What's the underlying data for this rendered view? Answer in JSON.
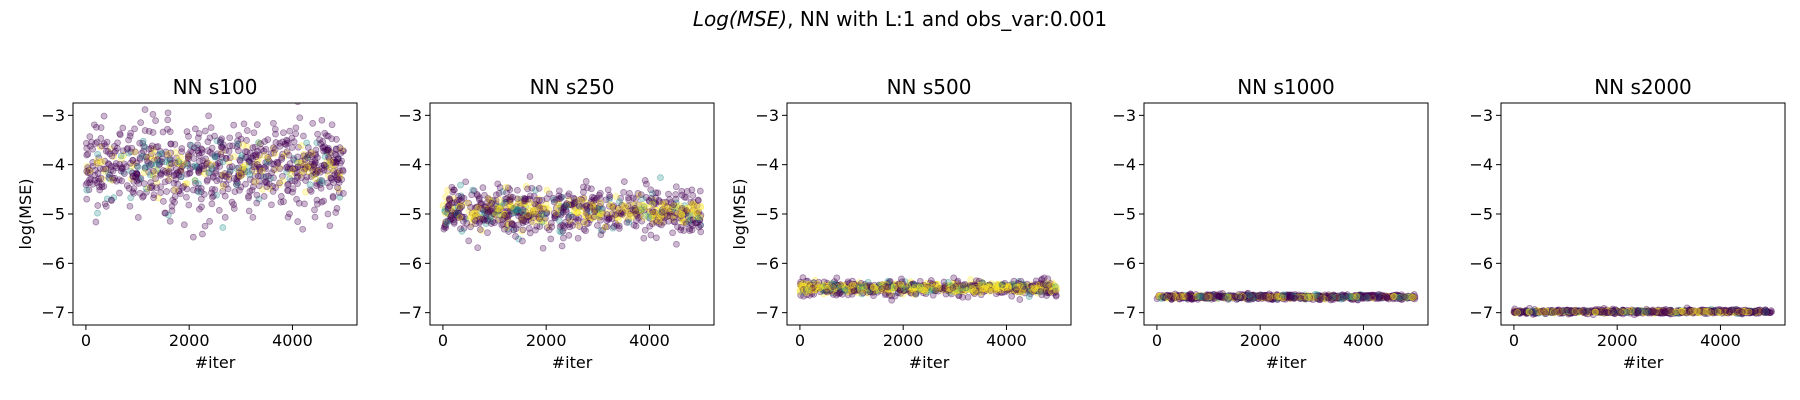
{
  "figure": {
    "suptitle_math": "Log(MSE)",
    "suptitle_rest": ", NN with L:1 and obs_var:0.001"
  },
  "colors": {
    "low": "#440154",
    "mid": "#21918c",
    "high": "#fde725"
  },
  "chart_data": [
    {
      "type": "scatter",
      "title": "NN s100",
      "xlabel": "#iter",
      "ylabel": "log(MSE)",
      "xlim": [
        -250,
        5250
      ],
      "ylim": [
        -7.25,
        -2.75
      ],
      "xticks": [
        0,
        2000,
        4000
      ],
      "yticks": [
        -3,
        -4,
        -5,
        -6,
        -7
      ],
      "x_range": [
        0,
        5000
      ],
      "center": -4.05,
      "spread": 0.42,
      "yellow_fraction": 0.15
    },
    {
      "type": "scatter",
      "title": "NN s250",
      "xlabel": "#iter",
      "ylabel": "",
      "xlim": [
        -250,
        5250
      ],
      "ylim": [
        -7.25,
        -2.75
      ],
      "xticks": [
        0,
        2000,
        4000
      ],
      "yticks": [
        -3,
        -4,
        -5,
        -6,
        -7
      ],
      "x_range": [
        0,
        5000
      ],
      "center": -4.95,
      "spread": 0.25,
      "yellow_fraction": 0.35
    },
    {
      "type": "scatter",
      "title": "NN s500",
      "xlabel": "#iter",
      "ylabel": "log(MSE)",
      "xlim": [
        -250,
        5250
      ],
      "ylim": [
        -7.25,
        -2.75
      ],
      "xticks": [
        0,
        2000,
        4000
      ],
      "yticks": [
        -3,
        -4,
        -5,
        -6,
        -7
      ],
      "x_range": [
        0,
        5000
      ],
      "center": -6.5,
      "spread": 0.08,
      "yellow_fraction": 0.6
    },
    {
      "type": "scatter",
      "title": "NN s1000",
      "xlabel": "#iter",
      "ylabel": "",
      "xlim": [
        -250,
        5250
      ],
      "ylim": [
        -7.25,
        -2.75
      ],
      "xticks": [
        0,
        2000,
        4000
      ],
      "yticks": [
        -3,
        -4,
        -5,
        -6,
        -7
      ],
      "x_range": [
        0,
        5000
      ],
      "center": -6.68,
      "spread": 0.025,
      "yellow_fraction": 0.3
    },
    {
      "type": "scatter",
      "title": "NN s2000",
      "xlabel": "#iter",
      "ylabel": "",
      "xlim": [
        -250,
        5250
      ],
      "ylim": [
        -7.25,
        -2.75
      ],
      "xticks": [
        0,
        2000,
        4000
      ],
      "yticks": [
        -3,
        -4,
        -5,
        -6,
        -7
      ],
      "x_range": [
        0,
        5000
      ],
      "center": -6.98,
      "spread": 0.02,
      "yellow_fraction": 0.35
    }
  ]
}
